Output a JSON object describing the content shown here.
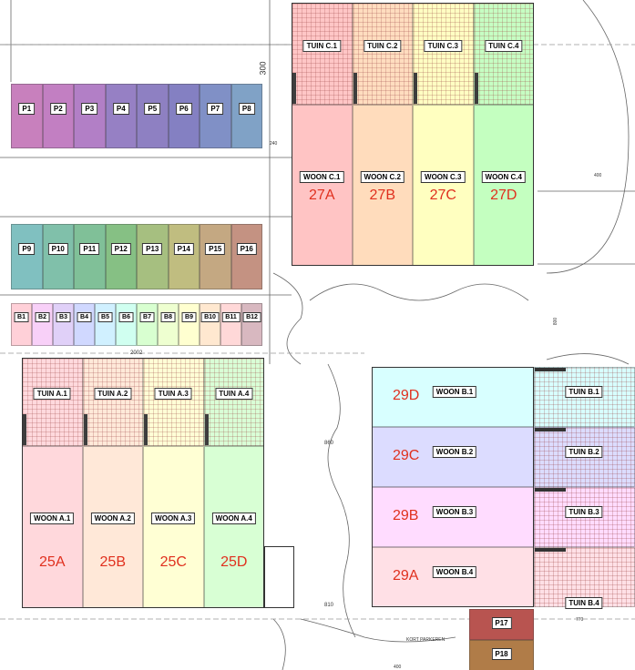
{
  "parking_top": [
    {
      "label": "P1",
      "color": "#c880bd"
    },
    {
      "label": "P2",
      "color": "#c27fc2"
    },
    {
      "label": "P3",
      "color": "#b27fc6"
    },
    {
      "label": "P4",
      "color": "#9680c4"
    },
    {
      "label": "P5",
      "color": "#8e80c2"
    },
    {
      "label": "P6",
      "color": "#8480c2"
    },
    {
      "label": "P7",
      "color": "#8090c6"
    },
    {
      "label": "P8",
      "color": "#80a2c6"
    }
  ],
  "parking_mid": [
    {
      "label": "P9",
      "color": "#80c0c0"
    },
    {
      "label": "P10",
      "color": "#80c0aa"
    },
    {
      "label": "P11",
      "color": "#80c098"
    },
    {
      "label": "P12",
      "color": "#86c084"
    },
    {
      "label": "P13",
      "color": "#a6bf80"
    },
    {
      "label": "P14",
      "color": "#c0bd80"
    },
    {
      "label": "P15",
      "color": "#c4a882"
    },
    {
      "label": "P16",
      "color": "#c49282"
    }
  ],
  "storage": [
    {
      "label": "B1",
      "color": "#ffd0d8"
    },
    {
      "label": "B2",
      "color": "#f8d0f8"
    },
    {
      "label": "B3",
      "color": "#e0d0f8"
    },
    {
      "label": "B4",
      "color": "#d0d8ff"
    },
    {
      "label": "B5",
      "color": "#d0f0ff"
    },
    {
      "label": "B6",
      "color": "#d0fff0"
    },
    {
      "label": "B7",
      "color": "#d8ffd0"
    },
    {
      "label": "B8",
      "color": "#eeffd0"
    },
    {
      "label": "B9",
      "color": "#ffffd0"
    },
    {
      "label": "B10",
      "color": "#ffe8d0"
    },
    {
      "label": "B11",
      "color": "#ffd8d8"
    },
    {
      "label": "B12",
      "color": "#d8b8c0"
    }
  ],
  "block_c": [
    {
      "tuin": "TUIN C.1",
      "woon": "WOON C.1",
      "number": "27A",
      "color": "#ffc4c4"
    },
    {
      "tuin": "TUIN C.2",
      "woon": "WOON C.2",
      "number": "27B",
      "color": "#ffdcbc"
    },
    {
      "tuin": "TUIN C.3",
      "woon": "WOON C.3",
      "number": "27C",
      "color": "#ffffc0"
    },
    {
      "tuin": "TUIN C.4",
      "woon": "WOON C.4",
      "number": "27D",
      "color": "#c4ffc0"
    }
  ],
  "block_a": [
    {
      "tuin": "TUIN A.1",
      "woon": "WOON A.1",
      "number": "25A",
      "color": "#ffd8dc"
    },
    {
      "tuin": "TUIN A.2",
      "woon": "WOON A.2",
      "number": "25B",
      "color": "#ffe8d8"
    },
    {
      "tuin": "TUIN A.3",
      "woon": "WOON A.3",
      "number": "25C",
      "color": "#ffffd4"
    },
    {
      "tuin": "TUIN A.4",
      "woon": "WOON A.4",
      "number": "25D",
      "color": "#d8ffd4"
    }
  ],
  "block_b": [
    {
      "tuin": "TUIN B.1",
      "woon": "WOON B.1",
      "number": "29D",
      "color": "#d8ffff"
    },
    {
      "tuin": "TUIN B.2",
      "woon": "WOON B.2",
      "number": "29C",
      "color": "#dcdcff"
    },
    {
      "tuin": "TUIN B.3",
      "woon": "WOON B.3",
      "number": "29B",
      "color": "#ffdcff"
    },
    {
      "tuin": "TUIN B.4",
      "woon": "WOON B.4",
      "number": "29A",
      "color": "#ffe0e6"
    }
  ],
  "parking_bottom": [
    {
      "label": "P17",
      "color": "#b85450"
    },
    {
      "label": "P18",
      "color": "#b07c48"
    }
  ],
  "dimensions": {
    "d300": "300",
    "d240": "240",
    "d1936c": "1936",
    "d1300": "1300",
    "d2002": "2002",
    "d860": "860",
    "d810": "810",
    "d770": "770",
    "d400": "400",
    "d800": "800",
    "d1936b": "1936",
    "d400b": "400"
  },
  "labels": {
    "kort_parkeren": "KORT PARKEREN"
  }
}
